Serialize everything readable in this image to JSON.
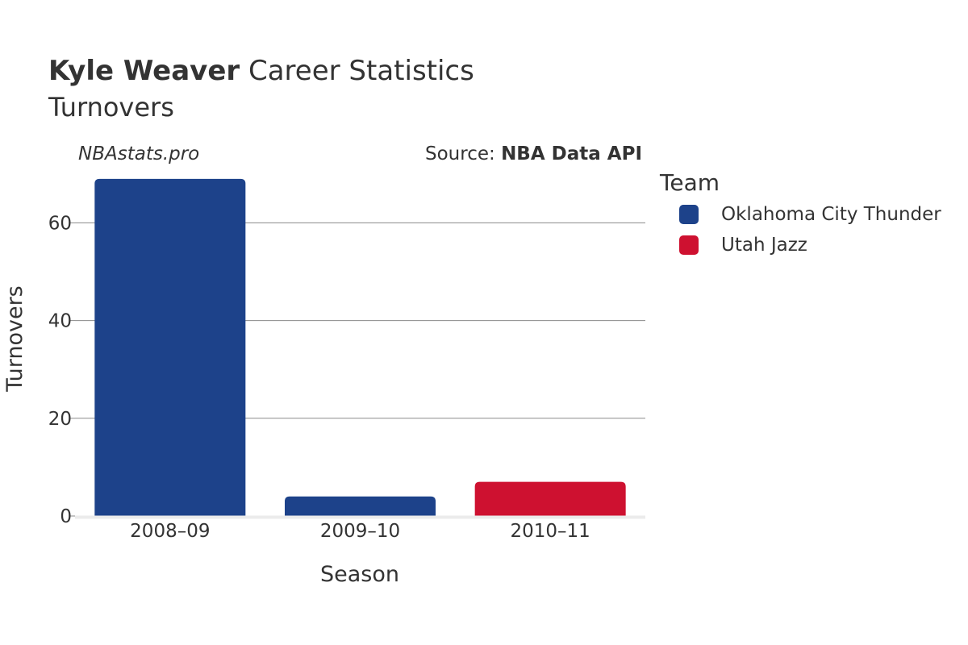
{
  "header": {
    "player_name": "Kyle Weaver",
    "title_rest": "Career Statistics",
    "subtitle": "Turnovers"
  },
  "watermark": "NBAstats.pro",
  "source": {
    "prefix": "Source: ",
    "name": "NBA Data API"
  },
  "legend": {
    "title": "Team",
    "items": [
      {
        "label": "Oklahoma City Thunder",
        "color": "#1D428A"
      },
      {
        "label": "Utah Jazz",
        "color": "#CE1130"
      }
    ]
  },
  "chart_data": {
    "type": "bar",
    "title": "Kyle Weaver Career Statistics",
    "subtitle": "Turnovers",
    "xlabel": "Season",
    "ylabel": "Turnovers",
    "categories": [
      "2008–09",
      "2009–10",
      "2010–11"
    ],
    "values": [
      69,
      4,
      7
    ],
    "teams": [
      "Oklahoma City Thunder",
      "Oklahoma City Thunder",
      "Utah Jazz"
    ],
    "bar_colors": [
      "#1D428A",
      "#1D428A",
      "#CE1130"
    ],
    "ylim": [
      0,
      70
    ],
    "yticks": [
      0,
      20,
      40,
      60
    ],
    "grid": true,
    "legend_position": "right"
  }
}
